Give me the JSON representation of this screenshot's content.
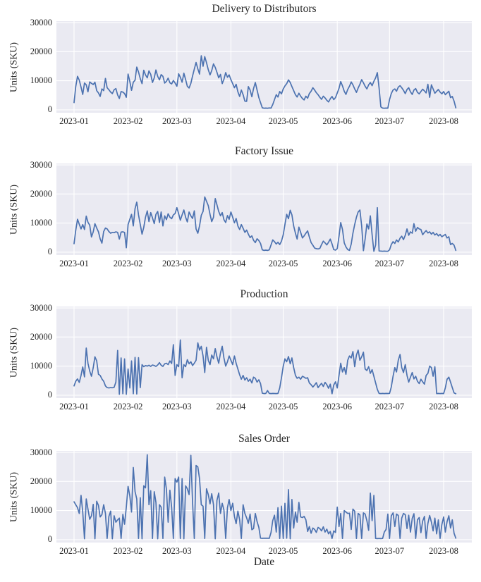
{
  "style": {
    "figure_background": "#ffffff",
    "axes_background": "#eaeaf2",
    "grid_color": "#ffffff",
    "line_color": "#4c72b0",
    "text_color": "#262626"
  },
  "axes": {
    "xlabel": "Date",
    "ylabel": "Units (SKU)",
    "x_tick_labels": [
      "2023-01",
      "2023-02",
      "2023-03",
      "2023-04",
      "2023-05",
      "2023-06",
      "2023-07",
      "2023-08"
    ],
    "x_tick_days": [
      0,
      31,
      59,
      90,
      120,
      151,
      181,
      212
    ],
    "y_tick_labels": [
      "0",
      "10000",
      "20000",
      "30000"
    ],
    "y_tick_values": [
      0,
      10000,
      20000,
      30000
    ],
    "xlim_days": [
      -10.1,
      228.2
    ],
    "ylim": [
      -1000,
      30500
    ],
    "x_start_date": "2023-01-01",
    "x_end_date": "2023-08-08",
    "x_frequency": "daily",
    "grid": true
  },
  "chart_data": [
    {
      "type": "line",
      "title": "Delivery to Distributors",
      "values": [
        2500,
        8000,
        11500,
        10200,
        7800,
        5300,
        9200,
        8600,
        6200,
        9600,
        9100,
        8700,
        9500,
        6600,
        5800,
        4600,
        7200,
        6600,
        10800,
        7600,
        6900,
        6100,
        5600,
        6900,
        7300,
        5100,
        3900,
        6300,
        6100,
        5600,
        4300,
        12300,
        9700,
        6700,
        9500,
        10200,
        14700,
        13000,
        10700,
        9000,
        13600,
        12000,
        11000,
        13400,
        12200,
        9400,
        11000,
        13700,
        11500,
        10300,
        12100,
        11500,
        9200,
        9800,
        10900,
        9300,
        8900,
        10100,
        9200,
        8100,
        12400,
        11200,
        9500,
        12600,
        10400,
        8100,
        7500,
        9100,
        11600,
        14000,
        16300,
        14100,
        12300,
        18600,
        15000,
        18300,
        16200,
        13800,
        12000,
        13500,
        15800,
        14600,
        12900,
        11000,
        12200,
        9000,
        10500,
        12800,
        11200,
        12000,
        10400,
        9000,
        7600,
        8800,
        6200,
        4600,
        6800,
        5200,
        3000,
        2900,
        8000,
        6800,
        4500,
        7300,
        9400,
        6800,
        4200,
        2500,
        700,
        550,
        600,
        550,
        650,
        600,
        1800,
        3500,
        5200,
        4400,
        6300,
        5500,
        7200,
        8200,
        9000,
        10300,
        9400,
        8000,
        6600,
        5200,
        4400,
        5700,
        4700,
        3900,
        3400,
        4700,
        4000,
        5600,
        6400,
        7600,
        6800,
        5900,
        5200,
        4300,
        3600,
        4700,
        4100,
        3300,
        2700,
        3800,
        4600,
        3500,
        4200,
        5800,
        7400,
        9700,
        8200,
        6400,
        5300,
        7000,
        8100,
        9600,
        8600,
        7200,
        6000,
        7500,
        8800,
        10400,
        9300,
        8100,
        7200,
        8600,
        9400,
        8300,
        9800,
        11000,
        12800,
        7500,
        1000,
        600,
        550,
        600,
        580,
        3500,
        5600,
        6800,
        7200,
        6400,
        7800,
        8300,
        7600,
        6700,
        5600,
        7000,
        7600,
        6200,
        5300,
        6800,
        7300,
        6000,
        5500,
        6300,
        7100,
        6500,
        5800,
        8800,
        4300,
        8600,
        7200,
        5700,
        6400,
        7000,
        6100,
        5500,
        6300,
        5200,
        5800,
        6400,
        4200,
        4600,
        3000,
        700
      ]
    },
    {
      "type": "line",
      "title": "Factory Issue",
      "values": [
        2900,
        7500,
        11300,
        9600,
        8000,
        9500,
        7800,
        12400,
        10300,
        9300,
        5200,
        7000,
        9800,
        8300,
        7000,
        4600,
        3100,
        7100,
        8300,
        8000,
        7100,
        6500,
        6800,
        6700,
        7000,
        6800,
        4500,
        6900,
        7000,
        6800,
        1500,
        9500,
        11300,
        13000,
        9000,
        15000,
        17200,
        12800,
        9500,
        6200,
        8500,
        12000,
        14200,
        10500,
        13600,
        11800,
        9800,
        13000,
        14000,
        10200,
        13800,
        9000,
        12500,
        11200,
        13200,
        12000,
        11500,
        12800,
        13300,
        15300,
        13200,
        11000,
        12800,
        14500,
        12000,
        10400,
        13800,
        12500,
        11600,
        14200,
        8000,
        6500,
        9000,
        12700,
        14000,
        19000,
        17500,
        16000,
        13000,
        10500,
        12000,
        18400,
        16300,
        14000,
        12500,
        13600,
        11200,
        10200,
        12600,
        11300,
        13800,
        12000,
        10100,
        11600,
        9000,
        7800,
        9500,
        8200,
        6800,
        7600,
        6200,
        5000,
        5600,
        4100,
        3300,
        4600,
        4000,
        3000,
        800,
        600,
        700,
        600,
        800,
        2500,
        4200,
        3600,
        2800,
        3400,
        2600,
        3800,
        6000,
        9500,
        13000,
        11500,
        14400,
        12800,
        9000,
        6500,
        4500,
        8600,
        6800,
        4900,
        5600,
        6500,
        7300,
        5200,
        3300,
        2400,
        1400,
        1200,
        1100,
        1300,
        2600,
        3800,
        3200,
        2500,
        3400,
        4500,
        2800,
        900,
        700,
        1200,
        5500,
        10200,
        7800,
        3200,
        1800,
        900,
        600,
        2800,
        6500,
        9500,
        12000,
        13800,
        14500,
        9000,
        500,
        4500,
        9700,
        8000,
        12500,
        6000,
        300,
        2500,
        15300,
        400,
        350,
        300,
        350,
        300,
        320,
        800,
        2600,
        3600,
        3000,
        4200,
        3500,
        4800,
        5500,
        4300,
        5800,
        8000,
        5800,
        7000,
        6500,
        9800,
        7200,
        8500,
        8000,
        7800,
        6000,
        6800,
        7400,
        6600,
        7000,
        6200,
        6800,
        5900,
        6400,
        5600,
        6100,
        5300,
        5700,
        6100,
        4900,
        5300,
        2600,
        3000,
        2400,
        600
      ]
    },
    {
      "type": "line",
      "title": "Production",
      "values": [
        3200,
        4800,
        5600,
        4400,
        6800,
        9700,
        6300,
        16200,
        11000,
        8300,
        6500,
        9500,
        13200,
        11800,
        7200,
        6800,
        5600,
        4800,
        3200,
        2600,
        2500,
        2600,
        2550,
        2700,
        4500,
        15400,
        300,
        12800,
        500,
        12500,
        300,
        9000,
        2500,
        11800,
        500,
        13000,
        400,
        12900,
        2600,
        10500,
        9800,
        10200,
        10000,
        10300,
        9900,
        10400,
        10200,
        9900,
        10400,
        11200,
        10300,
        9900,
        10800,
        11000,
        10500,
        11800,
        10900,
        17400,
        6800,
        10500,
        9800,
        19000,
        6000,
        10500,
        9800,
        12200,
        10800,
        11500,
        10200,
        11000,
        12000,
        18000,
        15500,
        16800,
        13500,
        7800,
        16500,
        12000,
        10500,
        13800,
        12500,
        16000,
        13200,
        11000,
        14500,
        16800,
        12800,
        10000,
        11500,
        13500,
        12000,
        10500,
        13500,
        11000,
        9000,
        7000,
        5500,
        6800,
        5200,
        6000,
        4800,
        5500,
        4200,
        6200,
        5800,
        4500,
        5300,
        4000,
        700,
        550,
        600,
        1600,
        600,
        550,
        600,
        580,
        560,
        600,
        2500,
        6000,
        10000,
        12500,
        11500,
        13300,
        10800,
        12800,
        9500,
        6800,
        5800,
        6200,
        5500,
        6500,
        6200,
        5800,
        6000,
        4200,
        3600,
        2800,
        3500,
        4300,
        2600,
        3400,
        4100,
        3000,
        4400,
        3600,
        2400,
        3800,
        500,
        3500,
        4600,
        2500,
        6800,
        11000,
        8000,
        9500,
        7200,
        12000,
        13500,
        12800,
        15000,
        9800,
        13800,
        15500,
        12000,
        13200,
        14800,
        9000,
        8500,
        9800,
        7500,
        8800,
        6500,
        4200,
        2000,
        600,
        550,
        600,
        550,
        600,
        580,
        600,
        2800,
        6500,
        9500,
        8000,
        12000,
        14000,
        9500,
        7800,
        10500,
        6800,
        4500,
        6200,
        7800,
        5600,
        6500,
        4800,
        4000,
        5500,
        4600,
        3800,
        6800,
        7500,
        10000,
        9500,
        6500,
        9800,
        550,
        600,
        550,
        600,
        550,
        2500,
        5500,
        6200,
        4500,
        2600,
        800,
        500
      ]
    },
    {
      "type": "line",
      "title": "Sales Order",
      "values": [
        13000,
        12000,
        11000,
        9000,
        15200,
        9500,
        300,
        14000,
        10500,
        7000,
        8200,
        12100,
        300,
        13200,
        11800,
        7800,
        8600,
        12000,
        9000,
        400,
        8000,
        9800,
        300,
        8200,
        6000,
        6800,
        7400,
        400,
        8700,
        5300,
        11200,
        18300,
        15000,
        9500,
        24800,
        16500,
        14000,
        400,
        14400,
        300,
        18500,
        17800,
        29200,
        12000,
        16800,
        400,
        16500,
        12800,
        300,
        12000,
        11200,
        400,
        21500,
        17300,
        6000,
        17000,
        11000,
        400,
        21000,
        19800,
        21500,
        400,
        21000,
        300,
        18500,
        17500,
        15500,
        29000,
        13000,
        400,
        25500,
        25000,
        21000,
        12000,
        11500,
        400,
        17500,
        15500,
        12300,
        15800,
        12000,
        300,
        13500,
        16000,
        9000,
        12500,
        10200,
        400,
        11000,
        13800,
        10000,
        12500,
        8000,
        5500,
        9800,
        6800,
        400,
        12000,
        9000,
        7500,
        5600,
        8800,
        3400,
        3800,
        9000,
        6200,
        4200,
        500,
        450,
        500,
        480,
        500,
        460,
        2500,
        6500,
        8400,
        2600,
        11000,
        400,
        11500,
        400,
        12500,
        500,
        17200,
        300,
        13800,
        4000,
        9500,
        6000,
        12800,
        7800,
        7600,
        8000,
        6800,
        2800,
        4500,
        2200,
        4000,
        3500,
        2500,
        4200,
        3800,
        3000,
        4400,
        2600,
        3600,
        2000,
        2800,
        400,
        3000,
        2500,
        11200,
        4500,
        9000,
        400,
        10000,
        9500,
        9000,
        9100,
        3500,
        10500,
        9800,
        400,
        9000,
        8500,
        400,
        9200,
        8800,
        6500,
        3200,
        16000,
        6500,
        15200,
        400,
        350,
        400,
        350,
        400,
        2600,
        3500,
        8800,
        400,
        8200,
        9200,
        4500,
        8800,
        8300,
        400,
        7400,
        9000,
        8600,
        3800,
        8400,
        2600,
        7300,
        8900,
        400,
        6800,
        7600,
        2400,
        6400,
        8000,
        400,
        5600,
        8300,
        6000,
        3000,
        7400,
        2000,
        6800,
        400,
        5200,
        7800,
        2600,
        6200,
        8200,
        4000,
        6800,
        2200,
        500
      ]
    }
  ]
}
